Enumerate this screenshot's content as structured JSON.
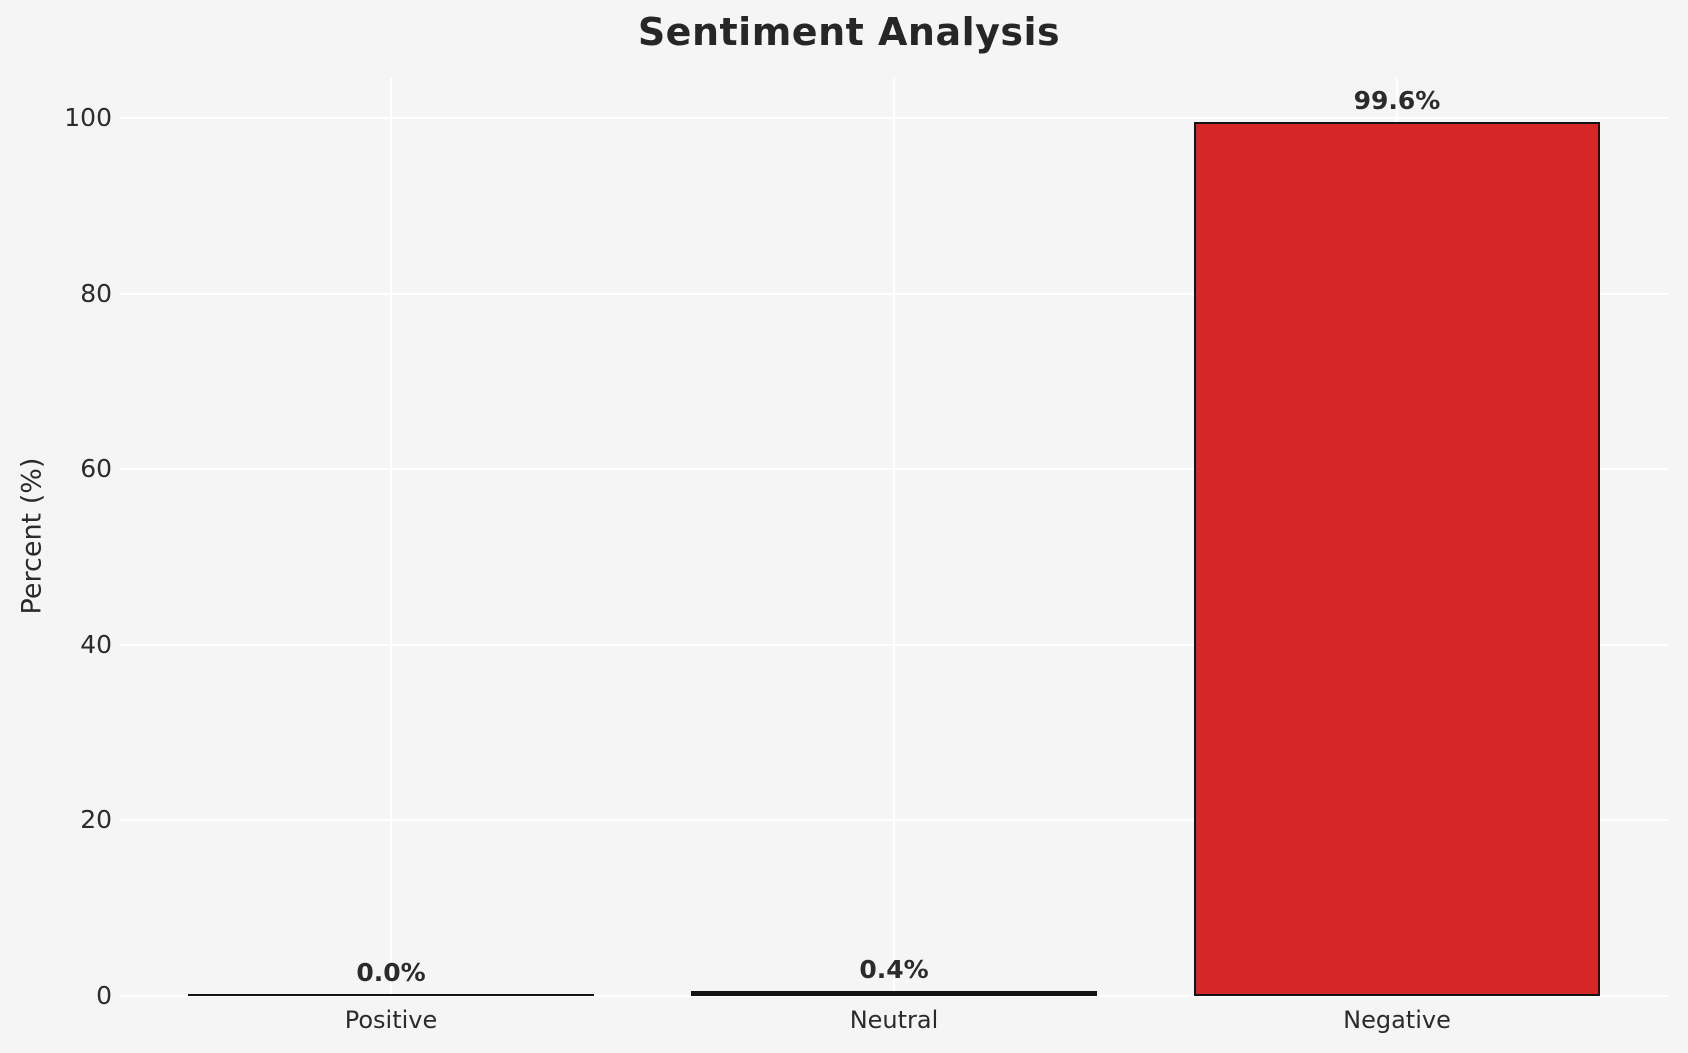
{
  "figure": {
    "background_color": "#f5f5f6",
    "grid_color": "#ffffff",
    "text_color": "#2b2b2b",
    "title_color": "#262626"
  },
  "chart_data": {
    "type": "bar",
    "title": "Sentiment Analysis",
    "xlabel": "",
    "ylabel": "Percent (%)",
    "categories": [
      "Positive",
      "Neutral",
      "Negative"
    ],
    "values": [
      0.0,
      0.4,
      99.6
    ],
    "bar_value_labels": [
      "0.0%",
      "0.4%",
      "99.6%"
    ],
    "bar_visible_colors": [
      "#141414",
      "#141414",
      "#d62728"
    ],
    "bar_edge_color": "#141414",
    "yticks": [
      0,
      20,
      40,
      60,
      80,
      100
    ],
    "ylim": [
      0,
      104.6
    ],
    "grid": true,
    "grid_axes": "both",
    "legend": false
  }
}
